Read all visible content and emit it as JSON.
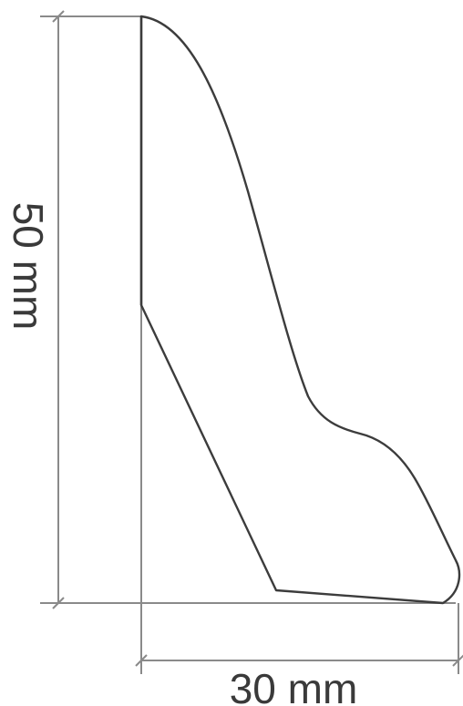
{
  "diagram": {
    "height_label": "50 mm",
    "width_label": "30 mm",
    "colors": {
      "profile_stroke": "#3c3c3c",
      "dimension_line": "#8a8a8a",
      "text": "#3a3a3a",
      "background": "#ffffff"
    }
  }
}
